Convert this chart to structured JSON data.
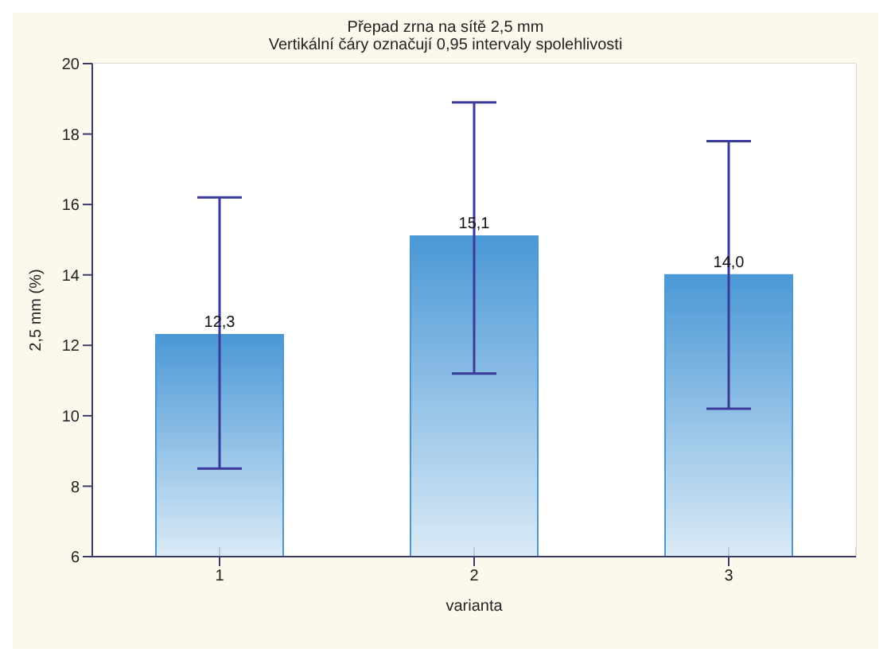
{
  "chart_data": {
    "type": "bar",
    "title": "Přepad zrna na sítě 2,5 mm",
    "subtitle": "Vertikální čáry označují 0,95 intervaly spolehlivosti",
    "xlabel": "varianta",
    "ylabel": "2,5 mm (%)",
    "categories": [
      "1",
      "2",
      "3"
    ],
    "values": [
      12.3,
      15.1,
      14.0
    ],
    "errors": [
      [
        8.5,
        16.2
      ],
      [
        11.2,
        18.9
      ],
      [
        10.2,
        17.8
      ]
    ],
    "color": "#4a98d6",
    "ylim": [
      6,
      20
    ],
    "yticks": [
      6,
      8,
      10,
      12,
      14,
      16,
      18,
      20
    ],
    "value_labels": [
      "12,3",
      "15,1",
      "14,0"
    ],
    "grid": true
  }
}
